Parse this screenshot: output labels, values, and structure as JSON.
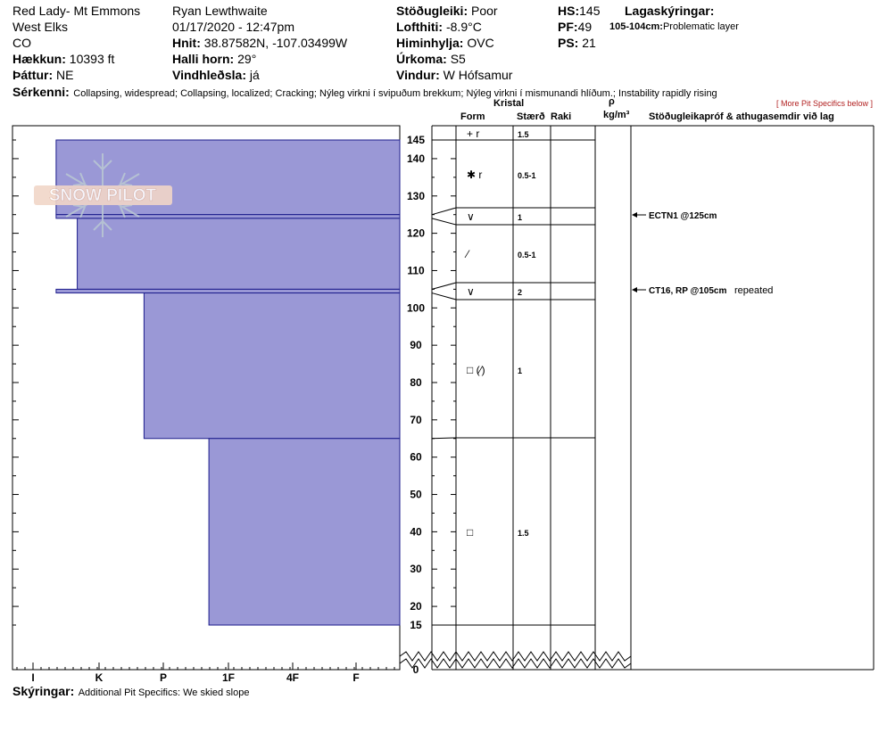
{
  "header": {
    "location": "Red Lady- Mt Emmons",
    "range": "West Elks",
    "state": "CO",
    "elevation_label": "Hækkun:",
    "elevation_value": "10393 ft",
    "aspect_label": "Þáttur:",
    "aspect_value": "NE",
    "observer": "Ryan Lewthwaite",
    "datetime": "01/17/2020 - 12:47pm",
    "coords_label": "Hnit:",
    "coords_value": "38.87582N, -107.03499W",
    "slope_label": "Halli horn:",
    "slope_value": "29°",
    "wind_loading_label": "Vindhleðsla:",
    "wind_loading_value": "já",
    "stability_label": "Stöðugleiki:",
    "stability_value": "Poor",
    "airtemp_label": "Lofthiti:",
    "airtemp_value": "-8.9°C",
    "sky_label": "Himinhylja:",
    "sky_value": "OVC",
    "precip_label": "Úrkoma:",
    "precip_value": "S5",
    "wind_label": "Vindur:",
    "wind_value": "W Hófsamur",
    "hs_label": "HS:",
    "hs_value": "145",
    "pf_label": "PF:",
    "pf_value": "49",
    "ps_label": "PS:",
    "ps_value": "21",
    "layer_notes_label": "Lagaskýringar:",
    "layer_note_depth": "105-104cm:",
    "layer_note_text": "Problematic layer",
    "features_label": "Sérkenni:",
    "features_value": "Collapsing, widespread;  Collapsing, localized;  Cracking;  Nýleg virkni í svipuðum brekkum;  Nýleg virkni í mismunandi hlíðum.;  Instability rapidly rising",
    "more_link": "[ More Pit Specifics below ]"
  },
  "columns": {
    "crystal": "Kristal",
    "form": "Form",
    "size": "Stærð",
    "moisture": "Raki",
    "rho": "ρ",
    "density_unit": "kg/m³",
    "tests": "Stöðugleikapróf & athugasemdir við lag"
  },
  "logo": {
    "text": "SNOW PILOT"
  },
  "hardness_ticks": [
    "I",
    "K",
    "P",
    "1F",
    "4F",
    "F"
  ],
  "depth_ticks": [
    "145",
    "140",
    "130",
    "120",
    "110",
    "100",
    "90",
    "80",
    "70",
    "60",
    "50",
    "40",
    "30",
    "20",
    "15",
    "0"
  ],
  "colors": {
    "layer_fill": "#9a98d6",
    "layer_stroke": "#1c1c8c",
    "link": "#b22222"
  },
  "layers": [
    {
      "top_cm": 145,
      "bottom_cm": 125,
      "hardness": "I+",
      "hardness_value": 0.35
    },
    {
      "top_cm": 125,
      "bottom_cm": 124,
      "hardness": "I+",
      "hardness_value": 0.35
    },
    {
      "top_cm": 124,
      "bottom_cm": 105,
      "hardness": "K",
      "hardness_value": 0.67
    },
    {
      "top_cm": 105,
      "bottom_cm": 104,
      "hardness": "I+",
      "hardness_value": 0.35
    },
    {
      "top_cm": 104,
      "bottom_cm": 65,
      "hardness": "1F",
      "hardness_value": 1.7
    },
    {
      "top_cm": 65,
      "bottom_cm": 15,
      "hardness": "4F",
      "hardness_value": 2.7
    }
  ],
  "crystals": [
    {
      "form": "+ r",
      "size": "1.5"
    },
    {
      "form": "✱ r",
      "size": "0.5-1"
    },
    {
      "form": "∨",
      "size": "1"
    },
    {
      "form": "⁄",
      "size": "0.5-1"
    },
    {
      "form": "∨",
      "size": "2"
    },
    {
      "form": "□ (⁄)",
      "size": "1"
    },
    {
      "form": "□",
      "size": "1.5"
    }
  ],
  "tests": [
    {
      "result": "ECTN1 @125cm",
      "comment": ""
    },
    {
      "result": "CT16, RP @105cm",
      "comment": "repeated"
    }
  ],
  "footer": {
    "notes_label": "Skýringar:",
    "notes_value": "Additional Pit Specifics: We skied slope"
  }
}
